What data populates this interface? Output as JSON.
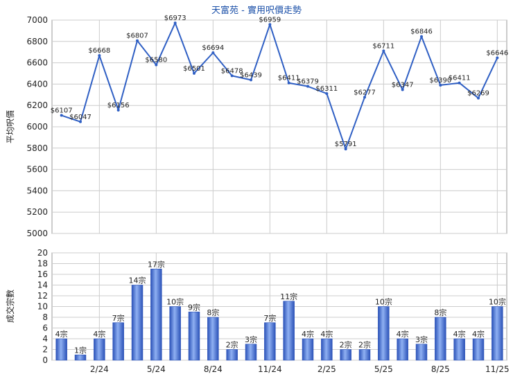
{
  "colors": {
    "line": "#2f5fc4",
    "bar_dark": "#2b52b8",
    "bar_light": "#7fa6f0",
    "grid": "#cccccc",
    "title": "#1a4fa8"
  },
  "chart_data": [
    {
      "type": "line",
      "title": "天富苑 - 實用呎價走勢",
      "ylabel": "平均呎價",
      "ylim": [
        5000,
        7000
      ],
      "yticks": [
        5000,
        5200,
        5400,
        5600,
        5800,
        6000,
        6200,
        6400,
        6600,
        6800,
        7000
      ],
      "grid": true,
      "series": [
        {
          "values": [
            6107,
            6047,
            6668,
            6156,
            6807,
            6580,
            6973,
            6501,
            6694,
            6478,
            6439,
            6959,
            6411,
            6379,
            6311,
            5791,
            6277,
            6711,
            6347,
            6846,
            6390,
            6411,
            6269,
            6646
          ],
          "labels": [
            "$6107",
            "$6047",
            "$6668",
            "$6156",
            "$6807",
            "$6580",
            "$6973",
            "$6501",
            "$6694",
            "$6478",
            "$6439",
            "$6959",
            "$6411",
            "$6379",
            "$6311",
            "$5791",
            "$6277",
            "$6711",
            "$6347",
            "$6846",
            "$6390",
            "$6411",
            "$6269",
            "$6646"
          ]
        }
      ]
    },
    {
      "type": "bar",
      "ylabel": "成交宗數",
      "ylim": [
        0,
        20
      ],
      "yticks": [
        0,
        2,
        4,
        6,
        8,
        10,
        12,
        14,
        16,
        18,
        20
      ],
      "grid": true,
      "x_tick_labels": [
        "2/24",
        "5/24",
        "8/24",
        "11/24",
        "2/25",
        "5/25",
        "8/25",
        "11/25"
      ],
      "x_tick_index": [
        2,
        5,
        8,
        11,
        14,
        17,
        20,
        23
      ],
      "values": [
        4,
        1,
        4,
        7,
        14,
        17,
        10,
        9,
        8,
        2,
        3,
        7,
        11,
        4,
        4,
        2,
        2,
        10,
        4,
        3,
        8,
        4,
        4,
        10
      ],
      "labels": [
        "4宗",
        "1宗",
        "4宗",
        "7宗",
        "14宗",
        "17宗",
        "10宗",
        "9宗",
        "8宗",
        "2宗",
        "3宗",
        "7宗",
        "11宗",
        "4宗",
        "4宗",
        "2宗",
        "2宗",
        "10宗",
        "4宗",
        "3宗",
        "8宗",
        "4宗",
        "4宗",
        "10宗"
      ]
    }
  ]
}
